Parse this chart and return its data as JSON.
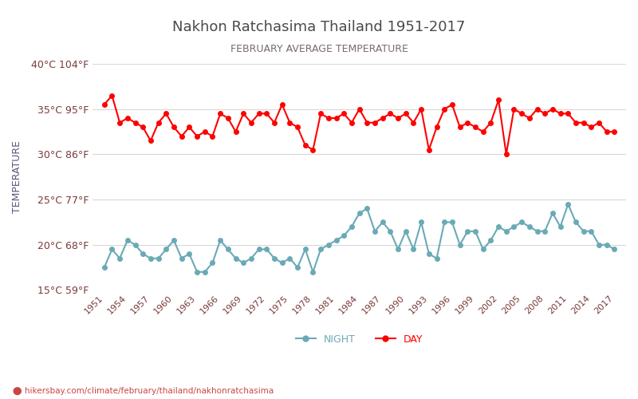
{
  "title": "Nakhon Ratchasima Thailand 1951-2017",
  "subtitle": "FEBRUARY AVERAGE TEMPERATURE",
  "ylabel": "TEMPERATURE",
  "footer": "hikersbay.com/climate/february/thailand/nakhonratchasima",
  "years": [
    1951,
    1952,
    1953,
    1954,
    1955,
    1956,
    1957,
    1958,
    1959,
    1960,
    1961,
    1962,
    1963,
    1964,
    1965,
    1966,
    1967,
    1968,
    1969,
    1970,
    1971,
    1972,
    1973,
    1974,
    1975,
    1976,
    1977,
    1978,
    1979,
    1980,
    1981,
    1982,
    1983,
    1984,
    1985,
    1986,
    1987,
    1988,
    1989,
    1990,
    1991,
    1992,
    1993,
    1994,
    1995,
    1996,
    1997,
    1998,
    1999,
    2000,
    2001,
    2002,
    2003,
    2004,
    2005,
    2006,
    2007,
    2008,
    2009,
    2010,
    2011,
    2012,
    2013,
    2014,
    2015,
    2016,
    2017
  ],
  "day_temps": [
    35.5,
    36.5,
    33.5,
    34.0,
    33.5,
    33.0,
    31.5,
    33.5,
    34.5,
    33.0,
    32.0,
    33.0,
    32.0,
    32.5,
    32.0,
    34.5,
    34.0,
    32.5,
    34.5,
    33.5,
    34.5,
    34.5,
    33.5,
    35.5,
    33.5,
    33.0,
    31.0,
    30.5,
    34.5,
    34.0,
    34.0,
    34.5,
    33.5,
    35.0,
    33.5,
    33.5,
    34.0,
    34.5,
    34.0,
    34.5,
    33.5,
    35.0,
    30.5,
    33.0,
    35.0,
    35.5,
    33.0,
    33.5,
    33.0,
    32.5,
    33.5,
    36.0,
    30.0,
    35.0,
    34.5,
    34.0,
    35.0,
    34.5,
    35.0,
    34.5,
    34.5,
    33.5,
    33.5,
    33.0,
    33.5,
    32.5,
    32.5
  ],
  "night_temps": [
    17.5,
    19.5,
    18.5,
    20.5,
    20.0,
    19.0,
    18.5,
    18.5,
    19.5,
    20.5,
    18.5,
    19.0,
    17.0,
    17.0,
    18.0,
    20.5,
    19.5,
    18.5,
    18.0,
    18.5,
    19.5,
    19.5,
    18.5,
    18.0,
    18.5,
    17.5,
    19.5,
    17.0,
    19.5,
    20.0,
    20.5,
    21.0,
    22.0,
    23.5,
    24.0,
    21.5,
    22.5,
    21.5,
    19.5,
    21.5,
    19.5,
    22.5,
    19.0,
    18.5,
    22.5,
    22.5,
    20.0,
    21.5,
    21.5,
    19.5,
    20.5,
    22.0,
    21.5,
    22.0,
    22.5,
    22.0,
    21.5,
    21.5,
    23.5,
    22.0,
    24.5,
    22.5,
    21.5,
    21.5,
    20.0,
    20.0,
    19.5
  ],
  "day_color": "#ff0000",
  "night_color": "#6aaab5",
  "title_color": "#4a4a4a",
  "subtitle_color": "#7a6a6a",
  "ylabel_color": "#5a5a7a",
  "tick_label_color": "#7a3a3a",
  "grid_color": "#d8d8d8",
  "background_color": "#ffffff",
  "ylim_min": 15,
  "ylim_max": 40,
  "yticks_c": [
    15,
    20,
    25,
    30,
    35,
    40
  ],
  "ytick_labels": [
    "15°C 59°F",
    "20°C 68°F",
    "25°C 77°F",
    "30°C 86°F",
    "35°C 95°F",
    "40°C 104°F"
  ],
  "xtick_years": [
    1951,
    1954,
    1957,
    1960,
    1963,
    1966,
    1969,
    1972,
    1975,
    1978,
    1981,
    1984,
    1987,
    1990,
    1993,
    1996,
    1999,
    2002,
    2005,
    2008,
    2011,
    2014,
    2017
  ],
  "legend_night_label": "NIGHT",
  "legend_day_label": "DAY",
  "footer_color": "#cc4444",
  "marker_size": 4,
  "line_width": 1.5
}
